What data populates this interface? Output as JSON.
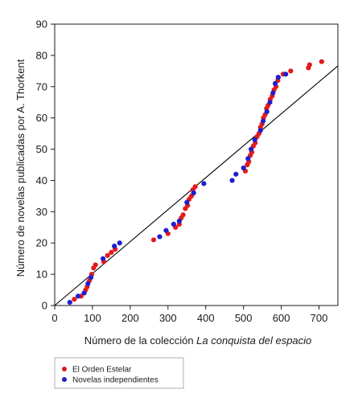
{
  "chart_data": {
    "type": "scatter",
    "title": "",
    "xlabel_prefix": "Número de la colección ",
    "xlabel_italic": "La conquista del espacio",
    "ylabel": "Número de novelas publicadas por A. Thorkent",
    "xlim": [
      0,
      750
    ],
    "ylim": [
      0,
      90
    ],
    "x_ticks": [
      0,
      100,
      200,
      300,
      400,
      500,
      600,
      700
    ],
    "y_ticks": [
      0,
      10,
      20,
      30,
      40,
      50,
      60,
      70,
      80,
      90
    ],
    "grid": false,
    "legend_position": "bottom-left (below plot)",
    "reference_line": {
      "slope": 0.1022,
      "intercept": 0
    },
    "series": [
      {
        "name": "El Orden Estelar",
        "color": "#e31a1c",
        "points": [
          [
            52,
            2
          ],
          [
            70,
            3
          ],
          [
            82,
            5
          ],
          [
            86,
            6
          ],
          [
            92,
            8
          ],
          [
            98,
            10
          ],
          [
            103,
            12
          ],
          [
            108,
            13
          ],
          [
            130,
            14
          ],
          [
            140,
            16
          ],
          [
            150,
            17
          ],
          [
            160,
            18
          ],
          [
            262,
            21
          ],
          [
            300,
            23
          ],
          [
            320,
            25
          ],
          [
            330,
            26
          ],
          [
            335,
            28
          ],
          [
            340,
            29
          ],
          [
            346,
            31
          ],
          [
            352,
            32
          ],
          [
            356,
            34
          ],
          [
            362,
            35
          ],
          [
            366,
            37
          ],
          [
            372,
            38
          ],
          [
            505,
            43
          ],
          [
            510,
            45
          ],
          [
            514,
            46
          ],
          [
            518,
            48
          ],
          [
            522,
            49
          ],
          [
            526,
            51
          ],
          [
            531,
            52
          ],
          [
            536,
            54
          ],
          [
            541,
            55
          ],
          [
            545,
            57
          ],
          [
            549,
            58
          ],
          [
            553,
            60
          ],
          [
            557,
            61
          ],
          [
            561,
            63
          ],
          [
            565,
            64
          ],
          [
            571,
            66
          ],
          [
            576,
            67
          ],
          [
            581,
            69
          ],
          [
            586,
            70
          ],
          [
            591,
            72
          ],
          [
            605,
            74
          ],
          [
            625,
            75
          ],
          [
            672,
            76
          ],
          [
            675,
            77
          ],
          [
            707,
            78
          ]
        ]
      },
      {
        "name": "Novelas independientes",
        "color": "#1f1fcc",
        "points": [
          [
            40,
            1
          ],
          [
            62,
            3
          ],
          [
            78,
            4
          ],
          [
            88,
            7
          ],
          [
            96,
            9
          ],
          [
            128,
            15
          ],
          [
            158,
            19
          ],
          [
            172,
            20
          ],
          [
            278,
            22
          ],
          [
            295,
            24
          ],
          [
            315,
            26
          ],
          [
            330,
            27
          ],
          [
            350,
            33
          ],
          [
            368,
            36
          ],
          [
            395,
            39
          ],
          [
            470,
            40
          ],
          [
            480,
            42
          ],
          [
            500,
            44
          ],
          [
            512,
            47
          ],
          [
            520,
            50
          ],
          [
            530,
            53
          ],
          [
            545,
            56
          ],
          [
            552,
            59
          ],
          [
            562,
            62
          ],
          [
            570,
            65
          ],
          [
            578,
            68
          ],
          [
            584,
            71
          ],
          [
            592,
            73
          ],
          [
            612,
            74
          ]
        ]
      }
    ]
  }
}
